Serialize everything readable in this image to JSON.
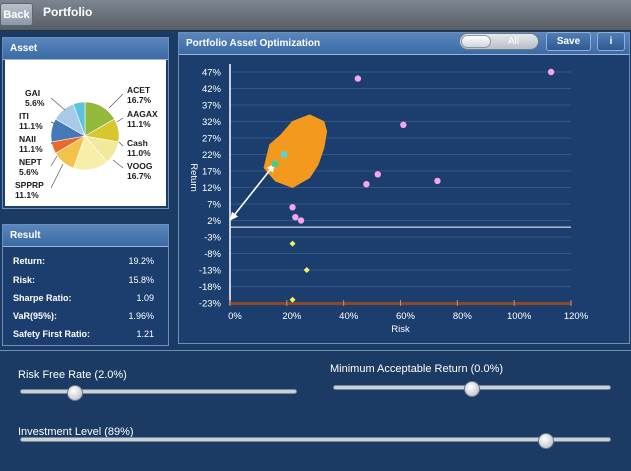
{
  "nav": {
    "back_label": "Back",
    "title": "Portfolio"
  },
  "asset": {
    "title": "Asset",
    "labels": [
      {
        "name": "GAI",
        "pct": "5.6%"
      },
      {
        "name": "ITI",
        "pct": "11.1%"
      },
      {
        "name": "NAII",
        "pct": "11.1%"
      },
      {
        "name": "NEPT",
        "pct": "5.6%"
      },
      {
        "name": "SPPRP",
        "pct": "11.1%"
      },
      {
        "name": "ACET",
        "pct": "16.7%"
      },
      {
        "name": "AAGAX",
        "pct": "11.1%"
      },
      {
        "name": "Cash",
        "pct": "11.0%"
      },
      {
        "name": "VOOG",
        "pct": "16.7%"
      }
    ],
    "pie": [
      {
        "name": "ACET",
        "value": 16.7,
        "color": "#93b93c"
      },
      {
        "name": "AAGAX",
        "value": 11.1,
        "color": "#d7c62d"
      },
      {
        "name": "Cash",
        "value": 11.0,
        "color": "#f2e99b"
      },
      {
        "name": "VOOG",
        "value": 16.7,
        "color": "#f7eeaa"
      },
      {
        "name": "SPPRP",
        "value": 11.1,
        "color": "#f3c24a"
      },
      {
        "name": "NEPT",
        "value": 5.6,
        "color": "#ea6a2d"
      },
      {
        "name": "NAII",
        "value": 11.1,
        "color": "#4579b8"
      },
      {
        "name": "ITI",
        "value": 11.1,
        "color": "#a9c9e8"
      },
      {
        "name": "GAI",
        "value": 5.6,
        "color": "#5ec1df"
      }
    ]
  },
  "result": {
    "title": "Result",
    "rows": [
      {
        "label": "Return:",
        "value": "19.2%"
      },
      {
        "label": "Risk:",
        "value": "15.8%"
      },
      {
        "label": "Sharpe Ratio:",
        "value": "1.09"
      },
      {
        "label": "VaR(95%):",
        "value": "1.96%"
      },
      {
        "label": "Safety First Ratio:",
        "value": "1.21"
      }
    ]
  },
  "optimization": {
    "title": "Portfolio Asset Optimization",
    "toggle_label": "All",
    "save_label": "Save",
    "info_label": "i"
  },
  "chart_data": {
    "type": "scatter",
    "xlabel": "Risk",
    "ylabel": "Return",
    "xlim": [
      0,
      120
    ],
    "ylim": [
      -23,
      47
    ],
    "x_ticks": [
      "0%",
      "20%",
      "40%",
      "60%",
      "80%",
      "100%",
      "120%"
    ],
    "y_ticks": [
      "47%",
      "42%",
      "37%",
      "32%",
      "27%",
      "22%",
      "17%",
      "12%",
      "7%",
      "2%",
      "-3%",
      "-8%",
      "-13%",
      "-18%",
      "-23%"
    ],
    "risk_free_rate": 2,
    "asset_points": [
      {
        "x": 45,
        "y": 45
      },
      {
        "x": 113,
        "y": 47
      },
      {
        "x": 61,
        "y": 31
      },
      {
        "x": 52,
        "y": 16
      },
      {
        "x": 48,
        "y": 13
      },
      {
        "x": 73,
        "y": 14
      },
      {
        "x": 22,
        "y": 6
      },
      {
        "x": 23,
        "y": 3
      },
      {
        "x": 25,
        "y": 2
      }
    ],
    "negative_points": [
      {
        "x": 22,
        "y": -5
      },
      {
        "x": 27,
        "y": -13
      },
      {
        "x": 22,
        "y": -22
      }
    ],
    "optimal_portfolio": {
      "x": 15.8,
      "y": 19.2
    },
    "tangency_portfolio": {
      "x": 19,
      "y": 22
    },
    "colors": {
      "asset": "#f5a6e8",
      "negative": "#f5f25a",
      "cloud": "#f39a1e",
      "optimal": "#3fcf8e",
      "tangency": "#4fd8d8",
      "grid": "#47729f",
      "x_axis_bar": "#8a4a2a"
    }
  },
  "sliders": {
    "risk_free": {
      "label": "Risk Free Rate (2.0%)",
      "fraction": 0.2
    },
    "mar": {
      "label": "Minimum Acceptable Return (0.0%)",
      "fraction": 0.5
    },
    "investment": {
      "label": "Investment Level (89%)",
      "fraction": 0.89
    }
  }
}
